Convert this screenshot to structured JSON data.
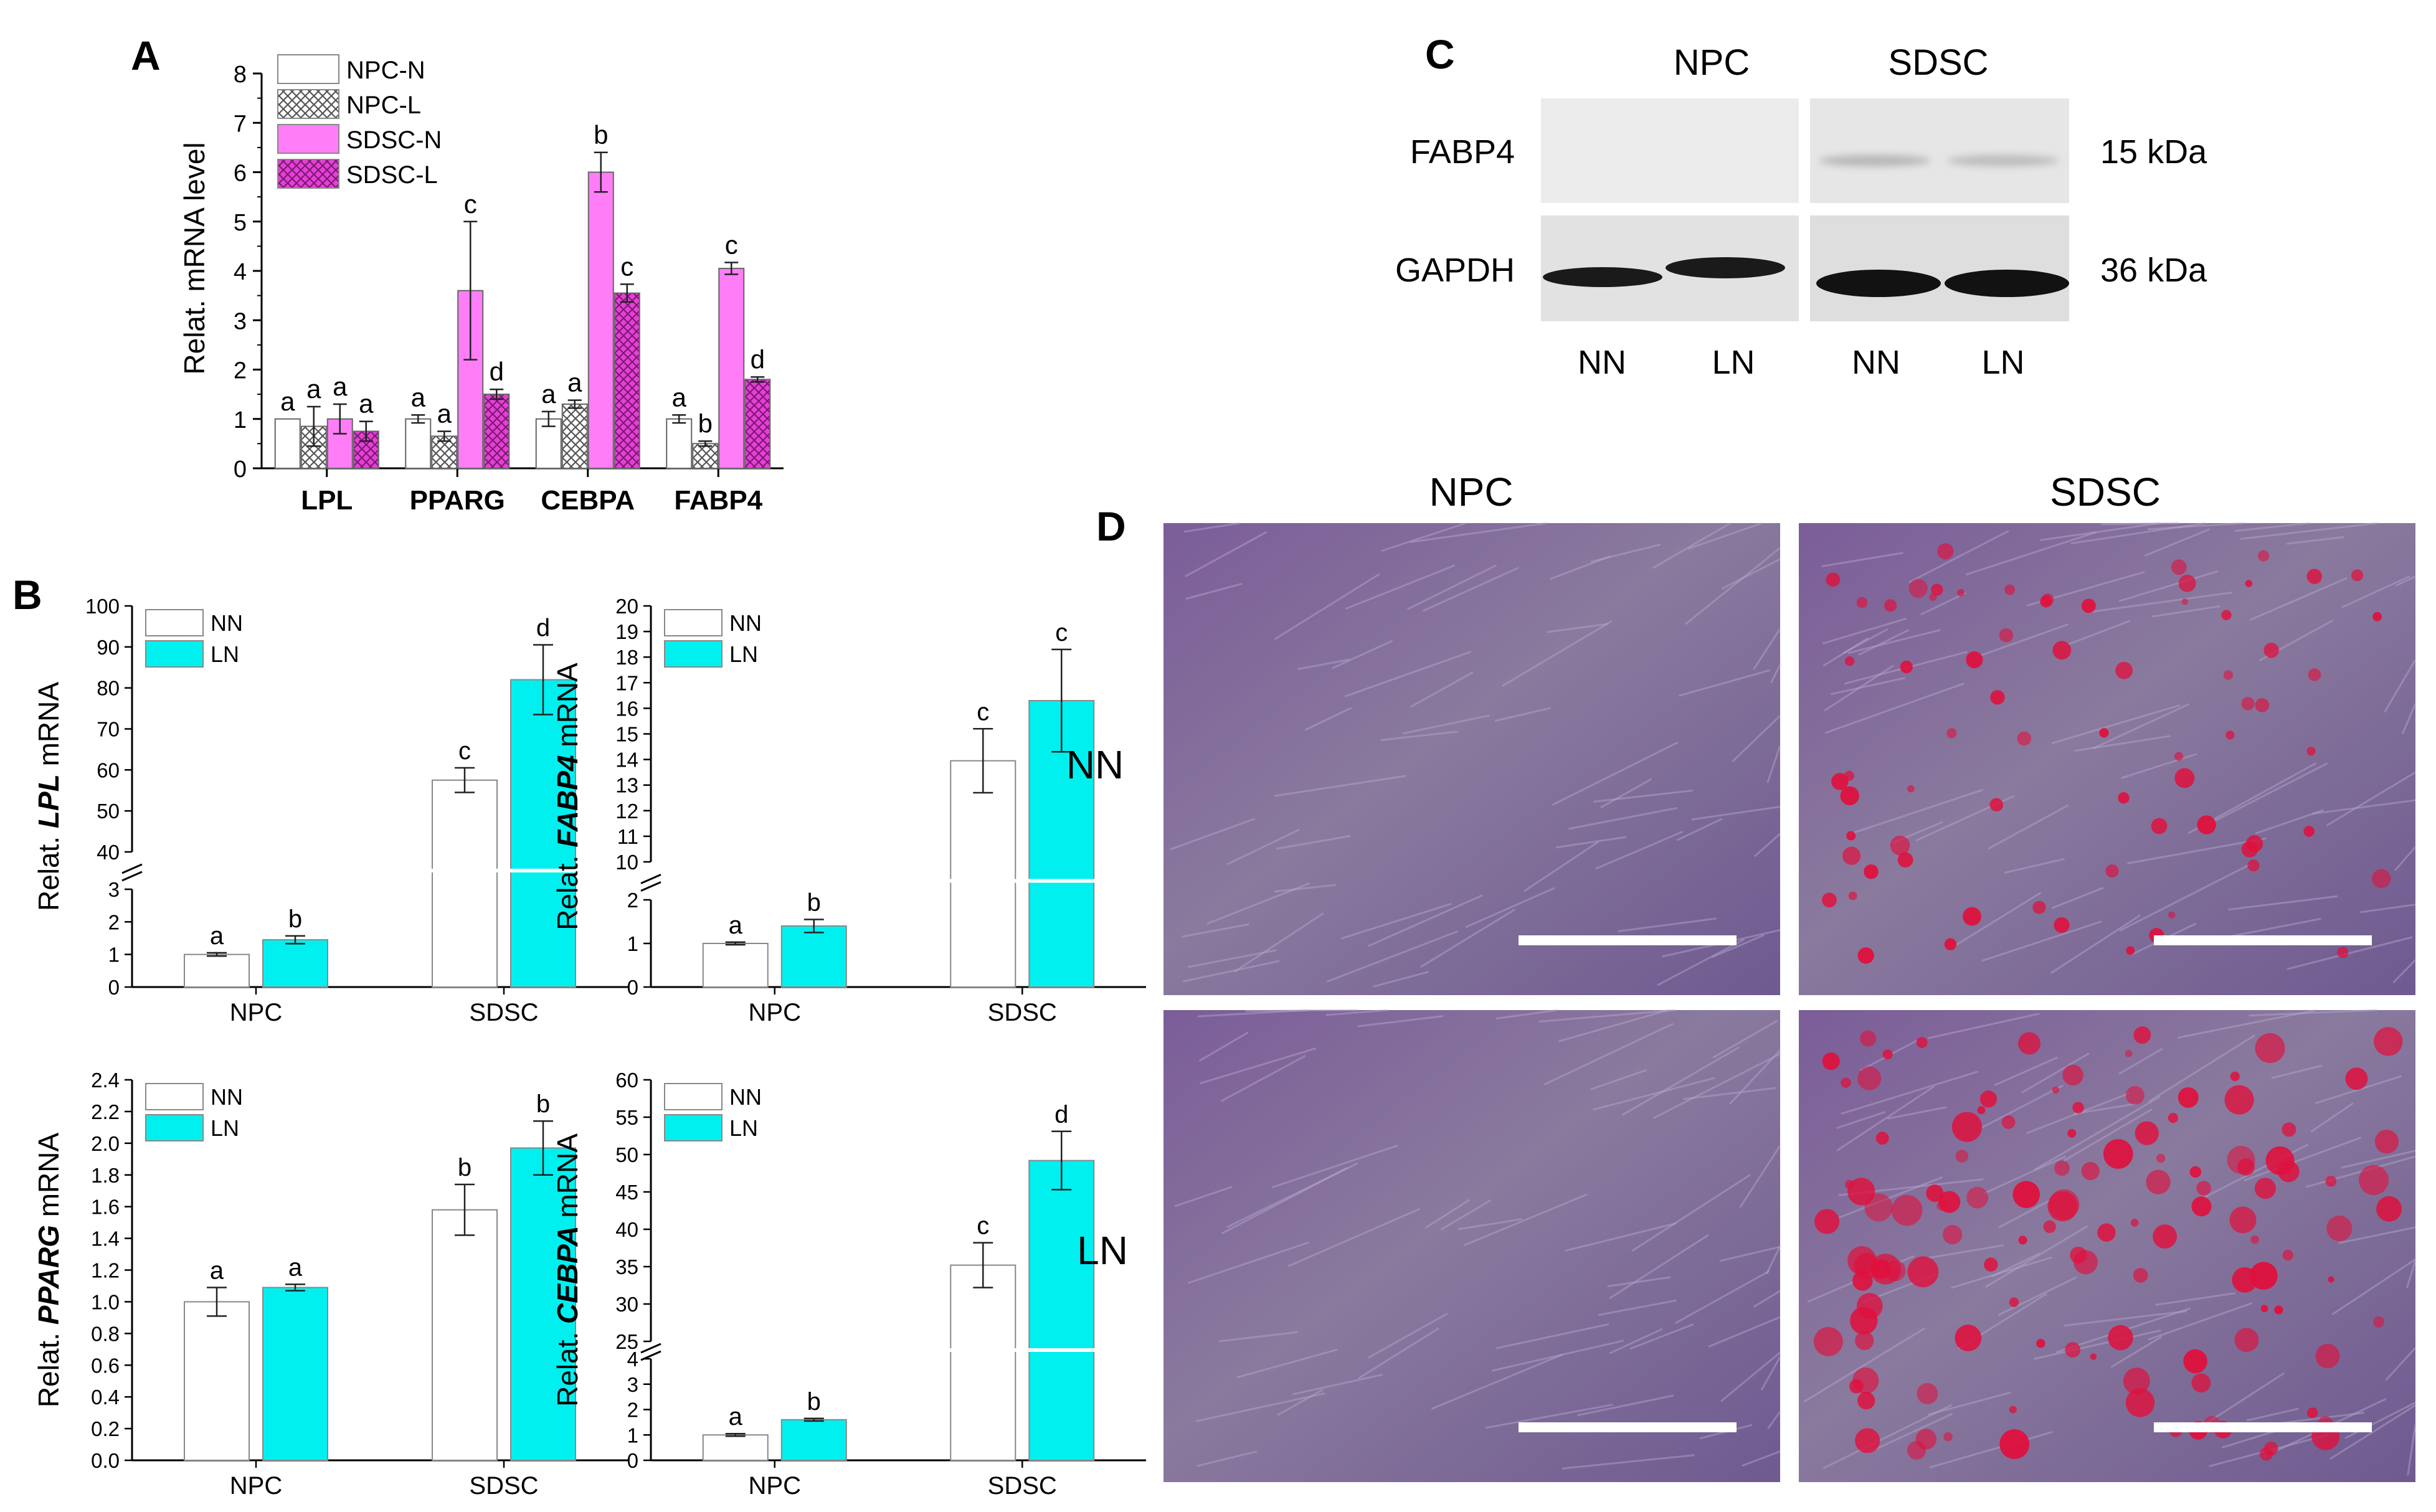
{
  "panels": {
    "A": {
      "letter": "A",
      "chart_data": {
        "type": "bar",
        "ylabel": "Relat. mRNA level",
        "ylim": [
          0,
          8
        ],
        "yticks": [
          "0",
          "1",
          "2",
          "3",
          "4",
          "5",
          "6",
          "7",
          "8"
        ],
        "categories": [
          "LPL",
          "PPARG",
          "CEBPA",
          "FABP4"
        ],
        "legend_position": "top-left",
        "series": [
          {
            "name": "NPC-N",
            "fill": "#ffffff",
            "pattern": "none",
            "values": [
              1.0,
              1.0,
              1.0,
              1.0
            ],
            "errors": [
              0.0,
              0.08,
              0.15,
              0.08
            ],
            "letters": [
              "a",
              "a",
              "a",
              "a"
            ]
          },
          {
            "name": "NPC-L",
            "fill": "#ffffff",
            "pattern": "crosshatch",
            "values": [
              0.85,
              0.65,
              1.3,
              0.5
            ],
            "errors": [
              0.4,
              0.1,
              0.08,
              0.05
            ],
            "letters": [
              "a",
              "a",
              "a",
              "b"
            ]
          },
          {
            "name": "SDSC-N",
            "fill": "#ff7ef7",
            "pattern": "none",
            "values": [
              1.0,
              3.6,
              6.0,
              4.05
            ],
            "errors": [
              0.3,
              1.4,
              0.4,
              0.12
            ],
            "letters": [
              "a",
              "c",
              "b",
              "c"
            ]
          },
          {
            "name": "SDSC-L",
            "fill": "#e63fd8",
            "pattern": "crosshatch",
            "values": [
              0.75,
              1.5,
              3.55,
              1.8
            ],
            "errors": [
              0.2,
              0.1,
              0.18,
              0.05
            ],
            "letters": [
              "a",
              "d",
              "c",
              "d"
            ]
          }
        ]
      }
    },
    "B": {
      "letter": "B",
      "legend": [
        "NN",
        "LN"
      ],
      "colors": {
        "NN": "#ffffff",
        "LN": "#00f0f0"
      },
      "charts": [
        {
          "id": "lpl",
          "gene": "LPL",
          "chart_data": {
            "type": "bar",
            "ylabel_prefix": "Relat. ",
            "ylabel_gene": "LPL",
            "ylabel_suffix": " mRNA",
            "categories": [
              "NPC",
              "SDSC"
            ],
            "axis_break": true,
            "lower_ticks": [
              "0",
              "1",
              "2",
              "3"
            ],
            "upper_ticks": [
              "40",
              "50",
              "60",
              "70",
              "80",
              "90",
              "100"
            ],
            "series": [
              {
                "name": "NN",
                "values": [
                  1.0,
                  57.5
                ],
                "errors": [
                  0.05,
                  3.0
                ],
                "letters": [
                  "a",
                  "c"
                ]
              },
              {
                "name": "LN",
                "values": [
                  1.45,
                  82.0
                ],
                "errors": [
                  0.12,
                  8.5
                ],
                "letters": [
                  "b",
                  "d"
                ]
              }
            ]
          }
        },
        {
          "id": "fabp4",
          "gene": "FABP4",
          "chart_data": {
            "type": "bar",
            "ylabel_prefix": "Relat. ",
            "ylabel_gene": "FABP4",
            "ylabel_suffix": " mRNA",
            "categories": [
              "NPC",
              "SDSC"
            ],
            "axis_break": true,
            "lower_ticks": [
              "0",
              "1",
              "2"
            ],
            "upper_ticks": [
              "10",
              "11",
              "12",
              "13",
              "14",
              "15",
              "16",
              "17",
              "18",
              "19",
              "20"
            ],
            "series": [
              {
                "name": "NN",
                "values": [
                  1.0,
                  13.95
                ],
                "errors": [
                  0.03,
                  1.25
                ],
                "letters": [
                  "a",
                  "c"
                ]
              },
              {
                "name": "LN",
                "values": [
                  1.4,
                  16.3
                ],
                "errors": [
                  0.15,
                  2.0
                ],
                "letters": [
                  "b",
                  "c"
                ]
              }
            ]
          }
        },
        {
          "id": "pparg",
          "gene": "PPARG",
          "chart_data": {
            "type": "bar",
            "ylabel_prefix": "Relat. ",
            "ylabel_gene": "PPARG",
            "ylabel_suffix": " mRNA",
            "categories": [
              "NPC",
              "SDSC"
            ],
            "axis_break": false,
            "ylim": [
              0,
              2.4
            ],
            "yticks": [
              "0.0",
              "0.2",
              "0.4",
              "0.6",
              "0.8",
              "1.0",
              "1.2",
              "1.4",
              "1.6",
              "1.8",
              "2.0",
              "2.2",
              "2.4"
            ],
            "series": [
              {
                "name": "NN",
                "values": [
                  1.0,
                  1.58
                ],
                "errors": [
                  0.09,
                  0.16
                ],
                "letters": [
                  "a",
                  "b"
                ]
              },
              {
                "name": "LN",
                "values": [
                  1.09,
                  1.97
                ],
                "errors": [
                  0.02,
                  0.17
                ],
                "letters": [
                  "a",
                  "b"
                ]
              }
            ]
          }
        },
        {
          "id": "cebpa",
          "gene": "CEBPA",
          "chart_data": {
            "type": "bar",
            "ylabel_prefix": "Relat. ",
            "ylabel_gene": "CEBPA",
            "ylabel_suffix": " mRNA",
            "categories": [
              "NPC",
              "SDSC"
            ],
            "axis_break": true,
            "lower_ticks": [
              "0",
              "1",
              "2",
              "3",
              "4"
            ],
            "upper_ticks": [
              "25",
              "30",
              "35",
              "40",
              "45",
              "50",
              "55",
              "60"
            ],
            "series": [
              {
                "name": "NN",
                "values": [
                  1.0,
                  35.2
                ],
                "errors": [
                  0.05,
                  3.0
                ],
                "letters": [
                  "a",
                  "c"
                ]
              },
              {
                "name": "LN",
                "values": [
                  1.6,
                  49.2
                ],
                "errors": [
                  0.05,
                  3.9
                ],
                "letters": [
                  "b",
                  "d"
                ]
              }
            ]
          }
        }
      ]
    },
    "C": {
      "letter": "C",
      "groups": [
        "NPC",
        "SDSC"
      ],
      "proteins": [
        {
          "name": "FABP4",
          "size": "15 kDa"
        },
        {
          "name": "GAPDH",
          "size": "36 kDa"
        }
      ],
      "lanes": [
        "NN",
        "LN",
        "NN",
        "LN"
      ]
    },
    "D": {
      "letter": "D",
      "columns": [
        "NPC",
        "SDSC"
      ],
      "rows": [
        "NN",
        "LN"
      ],
      "colors": {
        "micrograph": "#8a6f9e",
        "lipid": "#e0103c"
      }
    }
  }
}
